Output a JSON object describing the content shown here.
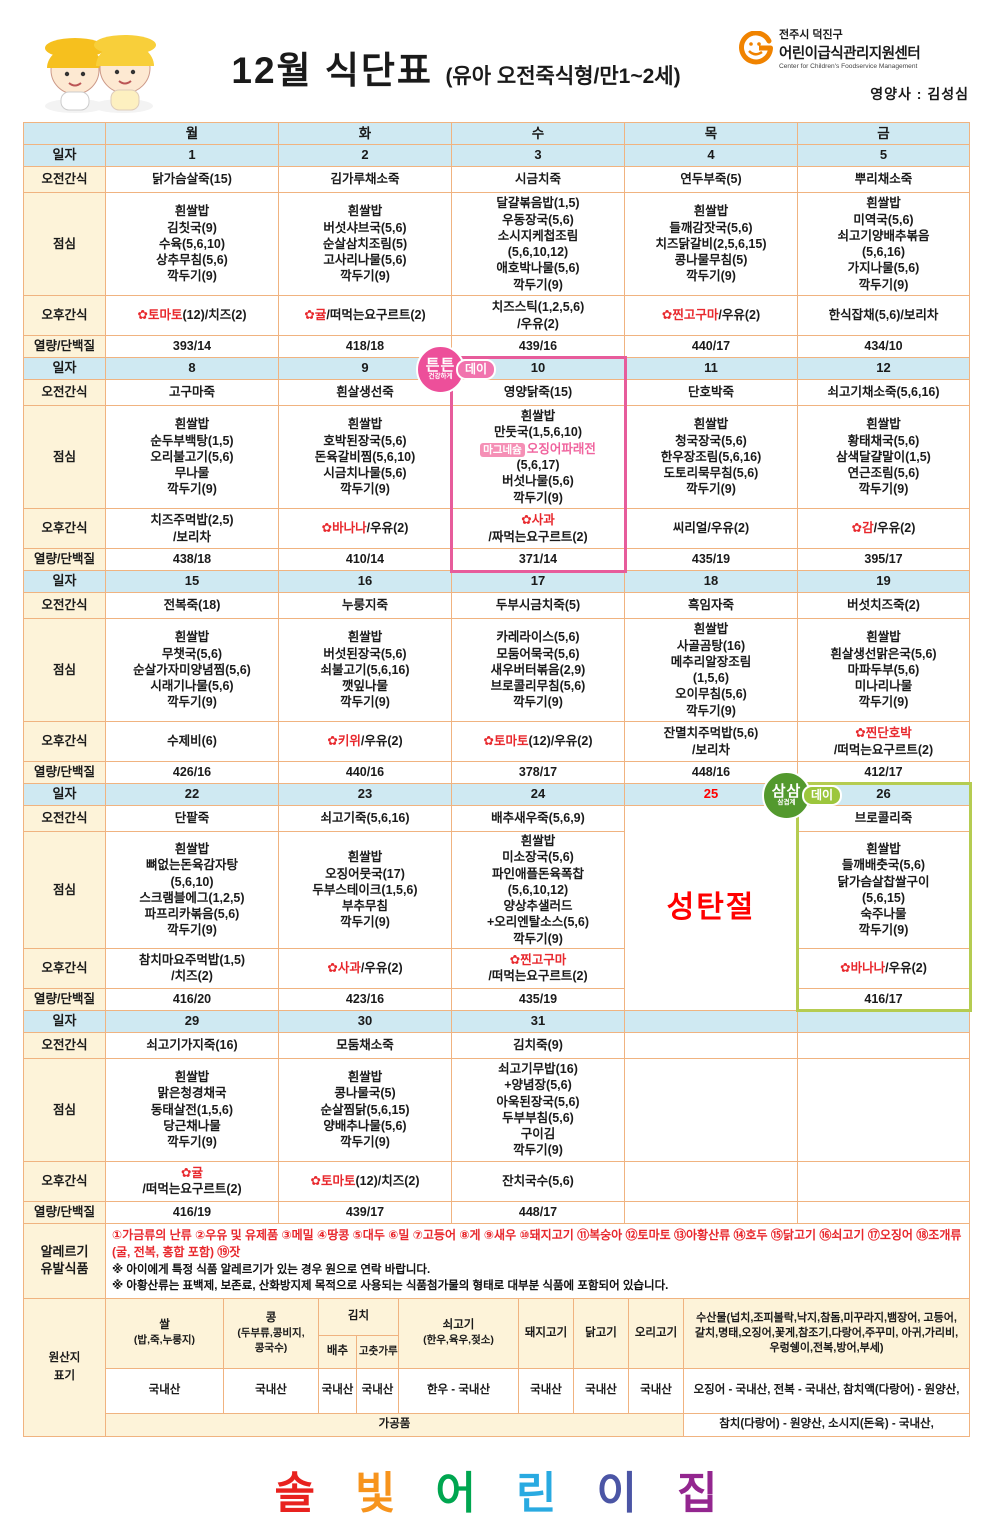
{
  "header": {
    "title": "12월 식단표",
    "subtitle": "(유아 오전죽식형/만1~2세)",
    "org_line1": "전주시 덕진구",
    "org_line2": "어린이급식관리지원센터",
    "org_line3": "Center for Children's Foodservice Management",
    "nutritionist": "영양사 : 김성심"
  },
  "colors": {
    "row_blue": "#cfe9f2",
    "label_cream": "#fdf3d9",
    "grid_border": "#f0b380",
    "accent_red": "#e8282d",
    "holiday_red": "#ff0000",
    "dish_pink": "#f0649e"
  },
  "badges": {
    "tuntun": {
      "main": "튼튼",
      "sub": "건강하게",
      "tail": "데이",
      "color": "#ed4f9a",
      "tail_color": "#f173ae"
    },
    "samsam": {
      "main": "삼삼",
      "sub": "삼겹계",
      "tail": "데이",
      "color": "#53992e",
      "tail_color": "#9cc63d"
    }
  },
  "table": {
    "day_headers": [
      "월",
      "화",
      "수",
      "목",
      "금"
    ],
    "labels": {
      "date": "일자",
      "am": "오전간식",
      "lunch": "점심",
      "pm": "오후간식",
      "cal": "열량/단백질"
    },
    "weeks": [
      {
        "dates": [
          "1",
          "2",
          "3",
          "4",
          "5"
        ],
        "am": [
          "닭가슴살죽(15)",
          "김가루채소죽",
          "시금치죽",
          "연두부죽(5)",
          "뿌리채소죽"
        ],
        "lunch": [
          [
            "흰쌀밥",
            "김칫국(9)",
            "수육(5,6,10)",
            "상추무침(5,6)",
            "깍두기(9)"
          ],
          [
            "흰쌀밥",
            "버섯샤브국(5,6)",
            "순살삼치조림(5)",
            "고사리나물(5,6)",
            "깍두기(9)"
          ],
          [
            "달걀볶음밥(1,5)",
            "우동장국(5,6)",
            "소시지케첩조림",
            "(5,6,10,12)",
            "애호박나물(5,6)",
            "깍두기(9)"
          ],
          [
            "흰쌀밥",
            "들깨감잣국(5,6)",
            "치즈닭갈비(2,5,6,15)",
            "콩나물무침(5)",
            "깍두기(9)"
          ],
          [
            "흰쌀밥",
            "미역국(5,6)",
            "쇠고기양배추볶음",
            "(5,6,16)",
            "가지나물(5,6)",
            "깍두기(9)"
          ]
        ],
        "pm": [
          [
            [
              {
                "t": "✿토마토",
                "s": "red"
              },
              {
                "t": "(12)/치즈(2)"
              }
            ]
          ],
          [
            [
              {
                "t": "✿귤",
                "s": "red"
              },
              {
                "t": "/떠먹는요구르트(2)"
              }
            ]
          ],
          [
            "치즈스틱(1,2,5,6)",
            "/우유(2)"
          ],
          [
            [
              {
                "t": "✿찐고구마",
                "s": "red"
              },
              {
                "t": "/우유(2)"
              }
            ]
          ],
          [
            "한식잡채(5,6)/보리차"
          ]
        ],
        "cal": [
          "393/14",
          "418/18",
          "439/16",
          "440/17",
          "434/10"
        ]
      },
      {
        "dates": [
          "8",
          "9",
          "10",
          "11",
          "12"
        ],
        "highlight": {
          "day": 2,
          "color": "#e75c9b",
          "badge": "tuntun"
        },
        "am": [
          "고구마죽",
          "흰살생선죽",
          "영양닭죽(15)",
          "단호박죽",
          "쇠고기채소죽(5,6,16)"
        ],
        "lunch": [
          [
            "흰쌀밥",
            "순두부백탕(1,5)",
            "오리불고기(5,6)",
            "무나물",
            "깍두기(9)"
          ],
          [
            "흰쌀밥",
            "호박된장국(5,6)",
            "돈육갈비찜(5,6,10)",
            "시금치나물(5,6)",
            "깍두기(9)"
          ],
          [
            "흰쌀밥",
            "만둣국(1,5,6,10)",
            [
              {
                "t": "마그네슘",
                "s": "tag"
              },
              {
                "t": "오징어파래전",
                "s": "pink"
              }
            ],
            "(5,6,17)",
            "버섯나물(5,6)",
            "깍두기(9)"
          ],
          [
            "흰쌀밥",
            "청국장국(5,6)",
            "한우장조림(5,6,16)",
            "도토리묵무침(5,6)",
            "깍두기(9)"
          ],
          [
            "흰쌀밥",
            "황태채국(5,6)",
            "삼색달걀말이(1,5)",
            "연근조림(5,6)",
            "깍두기(9)"
          ]
        ],
        "pm": [
          [
            "치즈주먹밥(2,5)",
            "/보리차"
          ],
          [
            [
              {
                "t": "✿바나나",
                "s": "red"
              },
              {
                "t": "/우유(2)"
              }
            ]
          ],
          [
            [
              {
                "t": "✿사과",
                "s": "red"
              }
            ],
            [
              {
                "t": "/짜먹는요구르트(2)"
              }
            ]
          ],
          [
            "씨리얼/우유(2)"
          ],
          [
            [
              {
                "t": "✿감",
                "s": "red"
              },
              {
                "t": "/우유(2)"
              }
            ]
          ]
        ],
        "cal": [
          "438/18",
          "410/14",
          "371/14",
          "435/19",
          "395/17"
        ]
      },
      {
        "dates": [
          "15",
          "16",
          "17",
          "18",
          "19"
        ],
        "am": [
          "전복죽(18)",
          "누룽지죽",
          "두부시금치죽(5)",
          "흑임자죽",
          "버섯치즈죽(2)"
        ],
        "lunch": [
          [
            "흰쌀밥",
            "무챗국(5,6)",
            "순살가자미양념찜(5,6)",
            "시래기나물(5,6)",
            "깍두기(9)"
          ],
          [
            "흰쌀밥",
            "버섯된장국(5,6)",
            "쇠불고기(5,6,16)",
            "깻잎나물",
            "깍두기(9)"
          ],
          [
            "카레라이스(5,6)",
            "모둠어묵국(5,6)",
            "새우버터볶음(2,9)",
            "브로콜리무침(5,6)",
            "깍두기(9)"
          ],
          [
            "흰쌀밥",
            "사골곰탕(16)",
            "메추리알장조림",
            "(1,5,6)",
            "오이무침(5,6)",
            "깍두기(9)"
          ],
          [
            "흰쌀밥",
            "흰살생선맑은국(5,6)",
            "마파두부(5,6)",
            "미나리나물",
            "깍두기(9)"
          ]
        ],
        "pm": [
          [
            "수제비(6)"
          ],
          [
            [
              {
                "t": "✿키위",
                "s": "red"
              },
              {
                "t": "/우유(2)"
              }
            ]
          ],
          [
            [
              {
                "t": "✿토마토",
                "s": "red"
              },
              {
                "t": "(12)/우유(2)"
              }
            ]
          ],
          [
            "잔멸치주먹밥(5,6)",
            "/보리차"
          ],
          [
            [
              {
                "t": "✿찐단호박",
                "s": "red"
              }
            ],
            [
              {
                "t": "/떠먹는요구르트(2)"
              }
            ]
          ]
        ],
        "cal": [
          "426/16",
          "440/16",
          "378/17",
          "448/16",
          "412/17"
        ]
      },
      {
        "dates": [
          "22",
          "23",
          "24",
          "25",
          "26"
        ],
        "red_days": [
          3
        ],
        "merged": {
          "day": 3,
          "text": "성탄절"
        },
        "highlight": {
          "day": 4,
          "color": "#b5cc51",
          "badge": "samsam"
        },
        "am": [
          "단팥죽",
          "쇠고기죽(5,6,16)",
          "배추새우죽(5,6,9)",
          "",
          "브로콜리죽"
        ],
        "lunch": [
          [
            "흰쌀밥",
            "뼈없는돈육감자탕",
            "(5,6,10)",
            "스크램블에그(1,2,5)",
            "파프리카볶음(5,6)",
            "깍두기(9)"
          ],
          [
            "흰쌀밥",
            "오징어뭇국(17)",
            "두부스테이크(1,5,6)",
            "부추무침",
            "깍두기(9)"
          ],
          [
            "흰쌀밥",
            "미소장국(5,6)",
            "파인애플돈육폭찹",
            "(5,6,10,12)",
            "양상추샐러드",
            "+오리엔탈소스(5,6)",
            "깍두기(9)"
          ],
          [],
          [
            "흰쌀밥",
            "들깨배춧국(5,6)",
            "닭가슴살찹쌀구이",
            "(5,6,15)",
            "숙주나물",
            "깍두기(9)"
          ]
        ],
        "pm": [
          [
            "참치마요주먹밥(1,5)",
            "/치즈(2)"
          ],
          [
            [
              {
                "t": "✿사과",
                "s": "red"
              },
              {
                "t": "/우유(2)"
              }
            ]
          ],
          [
            [
              {
                "t": "✿찐고구마",
                "s": "red"
              }
            ],
            [
              {
                "t": "/떠먹는요구르트(2)"
              }
            ]
          ],
          [],
          [
            [
              {
                "t": "✿바나나",
                "s": "red"
              },
              {
                "t": "/우유(2)"
              }
            ]
          ]
        ],
        "cal": [
          "416/20",
          "423/16",
          "435/19",
          "",
          "416/17"
        ]
      },
      {
        "dates": [
          "29",
          "30",
          "31",
          "",
          ""
        ],
        "am": [
          "쇠고기가지죽(16)",
          "모둠채소죽",
          "김치죽(9)",
          "",
          ""
        ],
        "lunch": [
          [
            "흰쌀밥",
            "맑은청경채국",
            "동태살전(1,5,6)",
            "당근채나물",
            "깍두기(9)"
          ],
          [
            "흰쌀밥",
            "콩나물국(5)",
            "순살찜닭(5,6,15)",
            "양배추나물(5,6)",
            "깍두기(9)"
          ],
          [
            "쇠고기무밥(16)",
            "+양념장(5,6)",
            "아욱된장국(5,6)",
            "두부부침(5,6)",
            "구이김",
            "깍두기(9)"
          ],
          [],
          []
        ],
        "pm": [
          [
            [
              {
                "t": "✿귤",
                "s": "red"
              }
            ],
            [
              {
                "t": "/떠먹는요구르트(2)"
              }
            ]
          ],
          [
            [
              {
                "t": "✿토마토",
                "s": "red"
              },
              {
                "t": "(12)/치즈(2)"
              }
            ]
          ],
          [
            "잔치국수(5,6)"
          ],
          [],
          []
        ],
        "cal": [
          "416/19",
          "439/17",
          "448/17",
          "",
          ""
        ]
      }
    ]
  },
  "allergy": {
    "label1": "알레르기",
    "label2": "유발식품",
    "line": "①가금류의 난류 ②우유 및 유제품 ③메밀 ④땅콩 ⑤대두 ⑥밀 ⑦고등어 ⑧게 ⑨새우 ⑩돼지고기 ⑪복숭아 ⑫토마토 ⑬아황산류 ⑭호두 ⑮닭고기 ⑯쇠고기 ⑰오징어 ⑱조개류(굴, 전복, 홍합 포함) ⑲잣",
    "note1": "※ 아이에게 특정 식품 알레르기가 있는 경우 원으로 연락 바랍니다.",
    "note2": "※ 아황산류는 표백제, 보존료, 산화방지제 목적으로 사용되는 식품첨가물의 형태로 대부분 식품에 포함되어 있습니다."
  },
  "origin": {
    "label1": "원산지",
    "label2": "표기",
    "rice_h1": "쌀",
    "rice_h2": "(밥,죽,누룽지)",
    "rice_v": "국내산",
    "bean_h1": "콩",
    "bean_h2": "(두부류,콩비지,콩국수)",
    "bean_v": "국내산",
    "kimchi_h": "김치",
    "kimchi_sub1": "배추",
    "kimchi_sub2": "고춧가루",
    "kimchi_v1": "국내산",
    "kimchi_v2": "국내산",
    "beef_h1": "쇠고기",
    "beef_h2": "(한우,육우,젖소)",
    "beef_v": "한우 - 국내산",
    "pork_h": "돼지고기",
    "pork_v": "국내산",
    "chicken_h": "닭고기",
    "chicken_v": "국내산",
    "duck_h": "오리고기",
    "duck_v": "국내산",
    "seafood_h": "수산물(넙치,조피볼락,낙지,참돔,미꾸라지,뱀장어, 고등어,갈치,명태,오징어,꽃게,참조기,다랑어,주꾸미, 아귀,가리비,우렁쉥이,전복,방어,부세)",
    "seafood_v": "오징어 - 국내산, 전복 - 국내산, 참치액(다랑어) - 원양산,",
    "processed_label": "가공품",
    "processed_v": "참치(다랑어) - 원양산, 소시지(돈육) - 국내산,"
  },
  "footer": {
    "letters": [
      {
        "ch": "솔",
        "color": "#e8221f"
      },
      {
        "ch": "빛",
        "color": "#f7941d"
      },
      {
        "ch": "어",
        "color": "#00a650"
      },
      {
        "ch": "린",
        "color": "#29aae1"
      },
      {
        "ch": "이",
        "color": "#4b55a5"
      },
      {
        "ch": "집",
        "color": "#93268f"
      }
    ]
  }
}
